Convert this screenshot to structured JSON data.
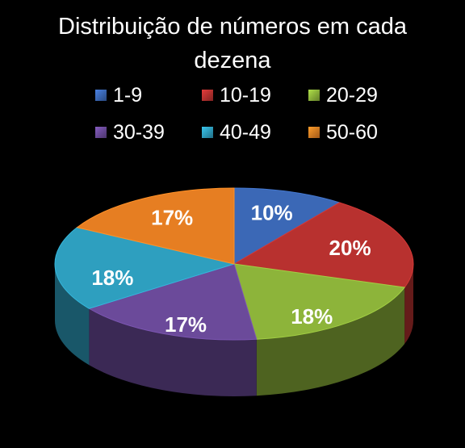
{
  "chart_data": {
    "type": "pie",
    "title": "Distribuição de números em cada dezena",
    "title_lines": [
      "Distribuição de números em cada",
      "dezena"
    ],
    "legend_position": "top",
    "categories": [
      "1-9",
      "10-19",
      "20-29",
      "30-39",
      "40-49",
      "50-60"
    ],
    "values": [
      10,
      20,
      18,
      17,
      18,
      17
    ],
    "labels": [
      "10%",
      "20%",
      "18%",
      "17%",
      "18%",
      "17%"
    ],
    "colors": [
      "#3b68b6",
      "#b8312f",
      "#8db43a",
      "#6b4a9a",
      "#2e9fbf",
      "#e67e22"
    ]
  }
}
